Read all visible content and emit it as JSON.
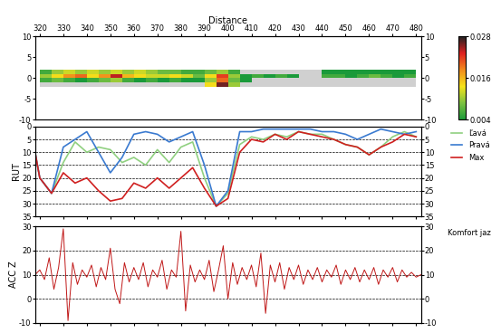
{
  "chart_data": [
    {
      "type": "heatmap",
      "x_label": "Distance",
      "xlim": [
        318,
        482
      ],
      "xticks": [
        320,
        330,
        340,
        350,
        360,
        370,
        380,
        390,
        400,
        410,
        420,
        430,
        440,
        450,
        460,
        470,
        480
      ],
      "ylim": [
        -10,
        10
      ],
      "yticks": [
        -10,
        -5,
        0,
        5,
        10
      ],
      "y2lim": [
        -10,
        10
      ],
      "y2ticks": [
        -10,
        -5,
        0,
        5,
        10
      ],
      "x_edges": [
        320,
        325,
        330,
        335,
        340,
        345,
        350,
        355,
        360,
        365,
        370,
        375,
        380,
        385,
        390,
        395,
        400,
        405,
        410,
        415,
        420,
        425,
        430,
        435,
        440,
        445,
        450,
        455,
        460,
        465,
        470,
        475,
        480
      ],
      "y_edges": [
        -2,
        -1,
        0,
        1,
        2
      ],
      "cells": [
        [
          null,
          null,
          null,
          null,
          null,
          null,
          null,
          null,
          null,
          null,
          null,
          null,
          null,
          null,
          0.014,
          0.026,
          0.01,
          null,
          null,
          null,
          null,
          null,
          null,
          null,
          null,
          null,
          null,
          null,
          null,
          null,
          null,
          null
        ],
        [
          0.006,
          0.008,
          0.006,
          0.004,
          0.006,
          0.008,
          0.01,
          0.006,
          0.004,
          0.006,
          0.004,
          0.006,
          0.004,
          0.004,
          0.01,
          0.02,
          0.008,
          0.004,
          null,
          null,
          null,
          null,
          null,
          null,
          null,
          null,
          null,
          null,
          null,
          null,
          null,
          null
        ],
        [
          0.01,
          0.014,
          0.018,
          0.02,
          0.014,
          0.018,
          0.024,
          0.016,
          0.014,
          0.012,
          0.012,
          0.014,
          0.012,
          0.008,
          0.014,
          0.022,
          0.01,
          0.004,
          0.006,
          0.004,
          0.006,
          0.004,
          null,
          null,
          0.006,
          0.006,
          0.004,
          0.006,
          0.008,
          0.006,
          0.004,
          0.006
        ],
        [
          0.006,
          0.01,
          0.012,
          0.01,
          0.012,
          0.01,
          0.012,
          0.01,
          0.012,
          0.01,
          0.008,
          0.008,
          0.006,
          0.006,
          0.008,
          0.01,
          0.006,
          null,
          null,
          null,
          null,
          null,
          null,
          null,
          0.004,
          0.004,
          0.004,
          0.004,
          0.004,
          0.004,
          0.004,
          0.004
        ]
      ],
      "colorbar": {
        "range": [
          0.004,
          0.028
        ],
        "ticks": [
          0.004,
          0.016,
          0.028
        ]
      }
    },
    {
      "type": "line",
      "y_label": "RUT",
      "grid": true,
      "legend": "upper left",
      "tick_labels": "y",
      "xlim": [
        318,
        482
      ],
      "xticks": [
        320,
        330,
        340,
        350,
        360,
        370,
        380,
        390,
        400,
        410,
        420,
        430,
        440,
        450,
        460,
        470,
        480
      ],
      "ylim": [
        35,
        0
      ],
      "yticks": [
        0,
        5,
        10,
        15,
        20,
        25,
        30,
        35
      ],
      "y2lim": [
        35,
        0
      ],
      "y2ticks": [
        0,
        5,
        10,
        15,
        20,
        25,
        30,
        35
      ],
      "x": [
        318,
        320,
        325,
        330,
        335,
        340,
        345,
        350,
        355,
        360,
        365,
        370,
        375,
        380,
        385,
        390,
        395,
        400,
        405,
        410,
        415,
        420,
        425,
        430,
        435,
        440,
        445,
        450,
        455,
        460,
        465,
        470,
        475,
        480
      ],
      "series": [
        {
          "name": "Ľavá",
          "color": "#90d080",
          "values": [
            10,
            20,
            26,
            14,
            6,
            10,
            8,
            9,
            14,
            12,
            15,
            9,
            14,
            8,
            6,
            20,
            31,
            26,
            7,
            4,
            5,
            3,
            4,
            2,
            3,
            3,
            5,
            7,
            8,
            11,
            8,
            4,
            2,
            4
          ]
        },
        {
          "name": "Pravá",
          "color": "#3a7ad0",
          "values": [
            10,
            20,
            26,
            8,
            5,
            2,
            10,
            18,
            12,
            3,
            2,
            3,
            6,
            4,
            2,
            15,
            31,
            25,
            2,
            2,
            1,
            1,
            1,
            1,
            1,
            2,
            2,
            3,
            5,
            3,
            1,
            2,
            3,
            2
          ]
        },
        {
          "name": "Max",
          "color": "#d02020",
          "values": [
            10,
            20,
            26,
            18,
            22,
            20,
            25,
            29,
            28,
            22,
            24,
            20,
            24,
            20,
            16,
            24,
            31,
            28,
            10,
            5,
            6,
            3,
            5,
            2,
            3,
            4,
            5,
            7,
            8,
            11,
            8,
            6,
            3,
            4
          ]
        }
      ]
    },
    {
      "type": "line",
      "y_label": "ACC Z",
      "annotation": "Komfort jaz",
      "grid": true,
      "tick_labels": "y",
      "color": "#c01818",
      "xlim": [
        318,
        482
      ],
      "xticks": [
        320,
        330,
        340,
        350,
        360,
        370,
        380,
        390,
        400,
        410,
        420,
        430,
        440,
        450,
        460,
        470,
        480
      ],
      "ylim": [
        -10,
        30
      ],
      "yticks": [
        -10,
        0,
        10,
        20,
        30
      ],
      "y2lim": [
        -10,
        30
      ],
      "y2ticks": [
        -10,
        0,
        10,
        20,
        30
      ],
      "x": [
        318,
        320,
        322,
        324,
        326,
        328,
        330,
        332,
        334,
        336,
        338,
        340,
        342,
        344,
        346,
        348,
        350,
        352,
        354,
        356,
        358,
        360,
        362,
        364,
        366,
        368,
        370,
        372,
        374,
        376,
        378,
        380,
        382,
        384,
        386,
        388,
        390,
        392,
        394,
        396,
        398,
        400,
        402,
        404,
        406,
        408,
        410,
        412,
        414,
        416,
        418,
        420,
        422,
        424,
        426,
        428,
        430,
        432,
        434,
        436,
        438,
        440,
        442,
        444,
        446,
        448,
        450,
        452,
        454,
        456,
        458,
        460,
        462,
        464,
        466,
        468,
        470,
        472,
        474,
        476,
        478,
        480,
        482
      ],
      "values": [
        10,
        12,
        8,
        17,
        4,
        13,
        29,
        -9,
        15,
        6,
        12,
        9,
        14,
        5,
        13,
        8,
        21,
        4,
        -2,
        15,
        7,
        13,
        8,
        15,
        5,
        12,
        9,
        16,
        4,
        12,
        9,
        28,
        -5,
        14,
        7,
        12,
        8,
        16,
        3,
        12,
        22,
        0,
        15,
        6,
        13,
        8,
        14,
        5,
        19,
        -6,
        14,
        7,
        15,
        4,
        13,
        8,
        14,
        6,
        12,
        8,
        13,
        7,
        12,
        9,
        14,
        6,
        12,
        8,
        13,
        7,
        12,
        8,
        13,
        6,
        12,
        9,
        13,
        7,
        12,
        9,
        11,
        9,
        10
      ]
    }
  ]
}
